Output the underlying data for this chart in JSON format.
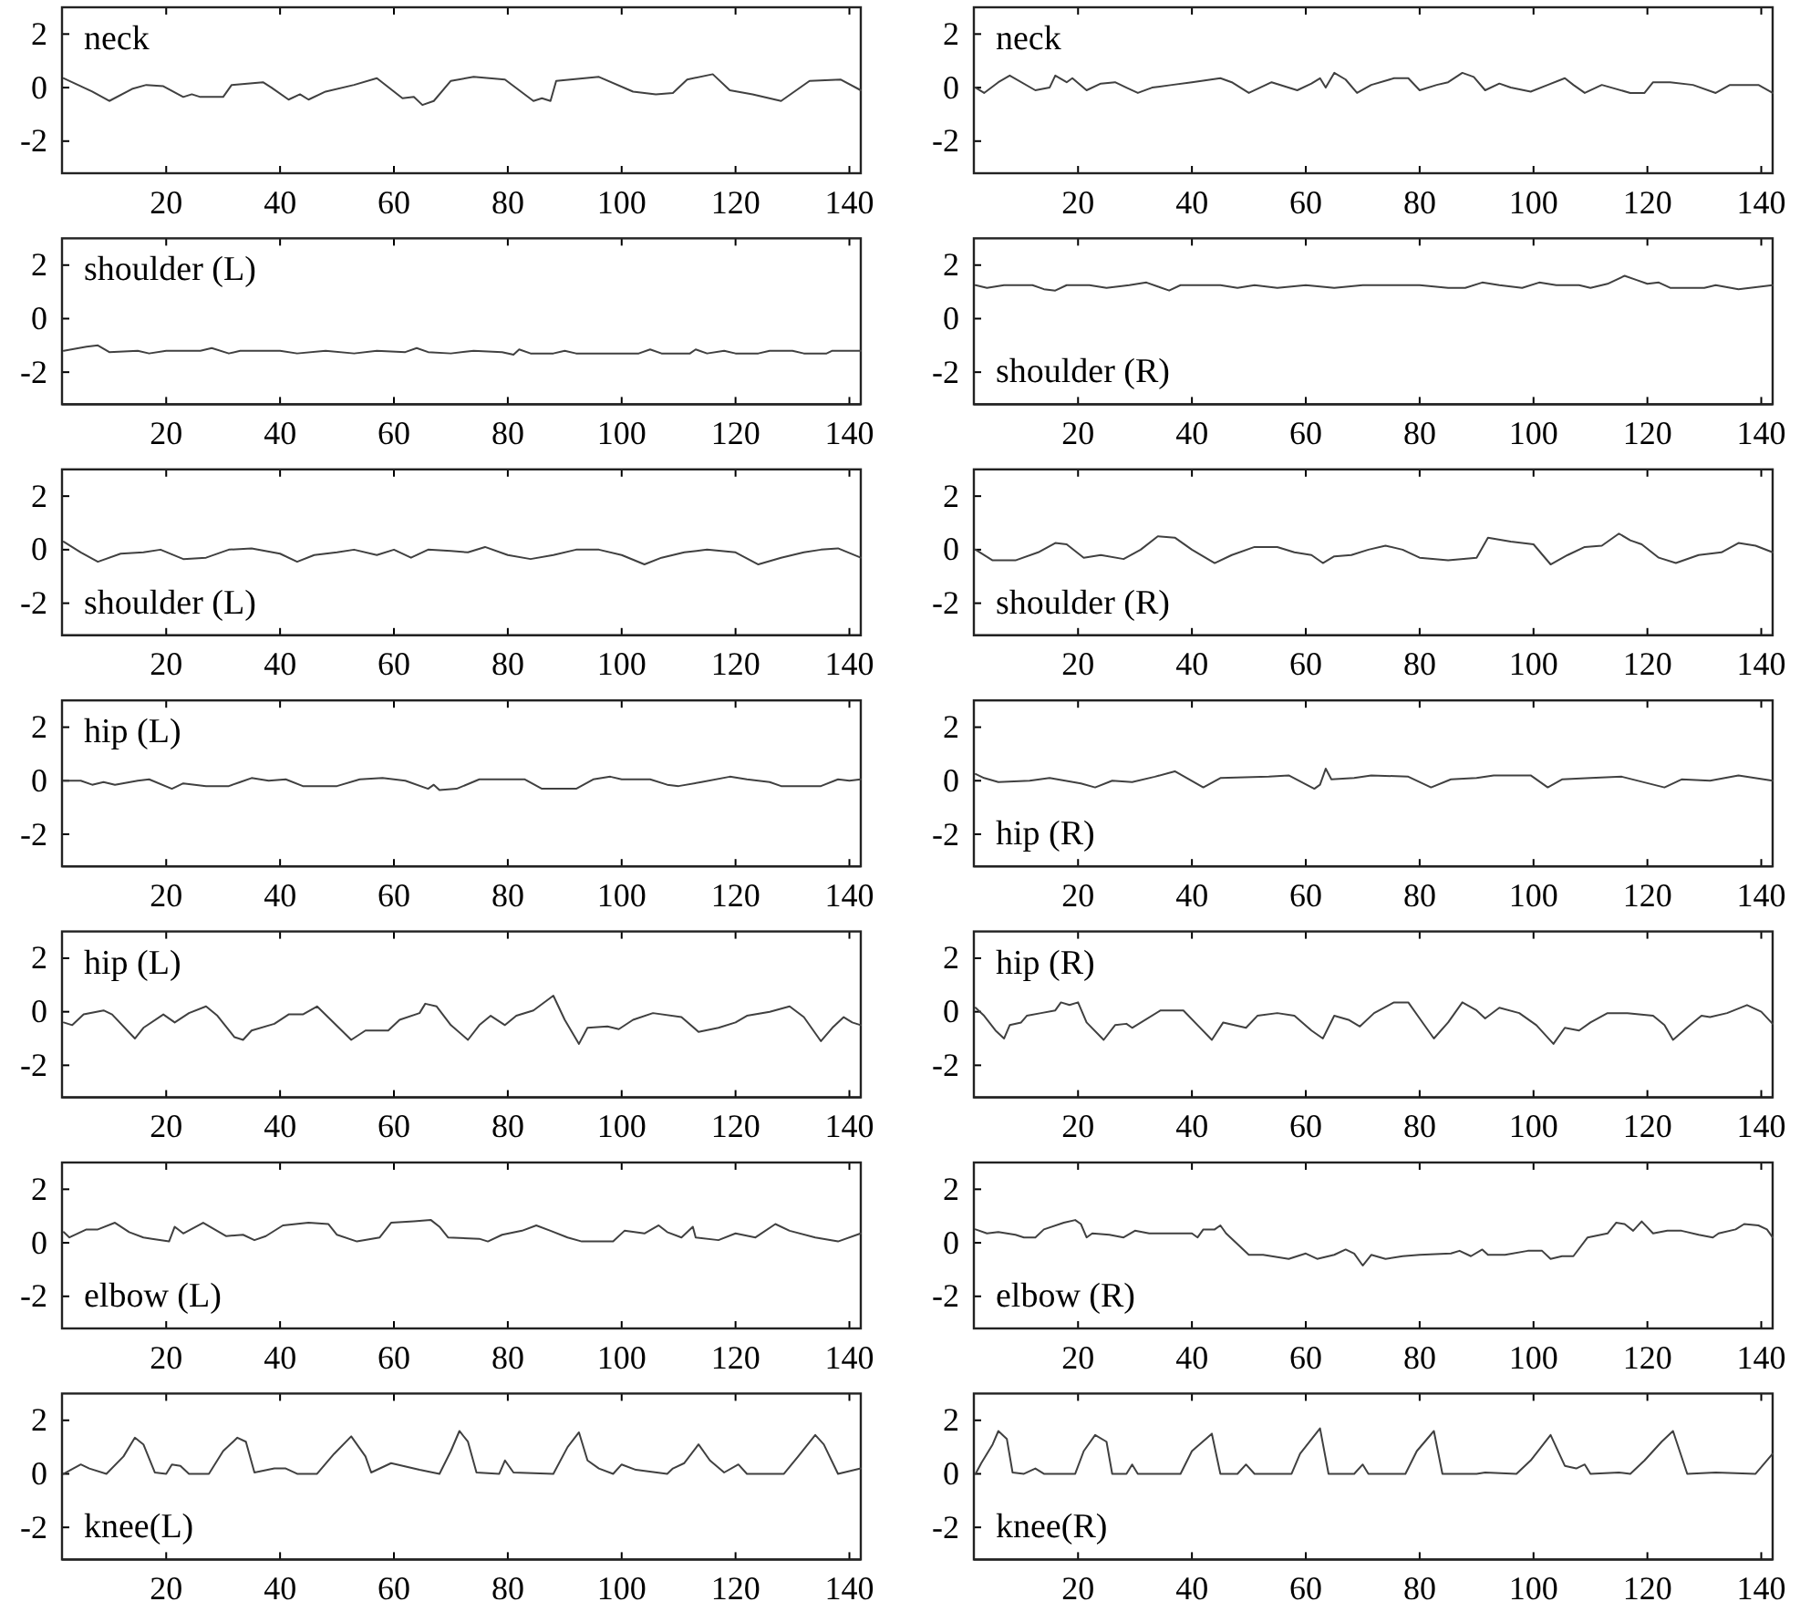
{
  "chart_data": [
    {
      "type": "line",
      "xlim": [
        1.7,
        142
      ],
      "xticks": [
        20,
        40,
        60,
        80,
        100,
        120,
        140
      ],
      "ylim": [
        -3.2,
        3
      ],
      "yticks": [
        -2,
        0,
        2
      ],
      "legend": "top left",
      "series": [
        {
          "name": "neck",
          "color": "#404040",
          "x": [
            2,
            7,
            10,
            14,
            16.5,
            19.5,
            23,
            24.5,
            26,
            30,
            31.5,
            37,
            38.5,
            41.5,
            43.5,
            45,
            48,
            53,
            57,
            61.5,
            63.5,
            65,
            67,
            70,
            74,
            79.5,
            84.5,
            86,
            87.5,
            88.5,
            96,
            102,
            106,
            109,
            111.5,
            116,
            119,
            123,
            128,
            133,
            138.5,
            142
          ],
          "values": [
            0.35,
            -0.15,
            -0.5,
            -0.05,
            0.1,
            0.05,
            -0.35,
            -0.25,
            -0.35,
            -0.35,
            0.1,
            0.2,
            0,
            -0.45,
            -0.25,
            -0.45,
            -0.15,
            0.1,
            0.35,
            -0.4,
            -0.35,
            -0.65,
            -0.5,
            0.25,
            0.4,
            0.3,
            -0.5,
            -0.4,
            -0.5,
            0.25,
            0.4,
            -0.15,
            -0.25,
            -0.2,
            0.3,
            0.5,
            -0.1,
            -0.25,
            -0.5,
            0.25,
            0.3,
            -0.1
          ]
        }
      ]
    },
    {
      "type": "line",
      "xlim": [
        1.7,
        142
      ],
      "xticks": [
        20,
        40,
        60,
        80,
        100,
        120,
        140
      ],
      "ylim": [
        -3.2,
        3
      ],
      "yticks": [
        -2,
        0,
        2
      ],
      "legend": "top left",
      "series": [
        {
          "name": "neck",
          "color": "#404040",
          "x": [
            2,
            3.5,
            6,
            8,
            12.5,
            15,
            16,
            18,
            19,
            21.5,
            24,
            26.5,
            28.5,
            30.5,
            33,
            36.5,
            40,
            45,
            47,
            50,
            54,
            58.5,
            61,
            62.5,
            63.5,
            65,
            67,
            69,
            71.5,
            75.5,
            78,
            80,
            83,
            85,
            87.5,
            89.5,
            91.5,
            94,
            96,
            99.5,
            102.5,
            105.5,
            107,
            109,
            112,
            117,
            119.5,
            121,
            124,
            128,
            132,
            134.5,
            139.5,
            142
          ],
          "values": [
            0,
            -0.2,
            0.2,
            0.45,
            -0.1,
            0,
            0.45,
            0.2,
            0.35,
            -0.1,
            0.15,
            0.2,
            0,
            -0.2,
            0,
            0.1,
            0.2,
            0.35,
            0.2,
            -0.2,
            0.2,
            -0.1,
            0.15,
            0.35,
            0,
            0.55,
            0.3,
            -0.2,
            0.1,
            0.35,
            0.35,
            -0.1,
            0.1,
            0.2,
            0.55,
            0.4,
            -0.1,
            0.15,
            0,
            -0.15,
            0.1,
            0.35,
            0.1,
            -0.2,
            0.1,
            -0.2,
            -0.2,
            0.2,
            0.2,
            0.1,
            -0.2,
            0.1,
            0.1,
            -0.2
          ]
        }
      ]
    },
    {
      "type": "line",
      "xlim": [
        1.7,
        142
      ],
      "xticks": [
        20,
        40,
        60,
        80,
        100,
        120,
        140
      ],
      "ylim": [
        -3.2,
        3
      ],
      "yticks": [
        -2,
        0,
        2
      ],
      "legend": "top left",
      "series": [
        {
          "name": "shoulder (L)",
          "color": "#404040",
          "x": [
            2,
            6,
            8,
            10,
            15,
            17,
            20,
            26,
            28,
            31,
            33,
            40,
            43,
            48,
            53,
            57,
            62,
            64,
            66,
            70,
            74,
            79,
            81,
            82,
            84,
            88,
            90,
            92,
            96,
            103,
            105,
            107,
            112,
            113,
            115,
            118,
            120,
            124,
            126,
            130,
            132,
            136,
            137,
            142
          ],
          "values": [
            -1.2,
            -1.05,
            -1,
            -1.25,
            -1.2,
            -1.3,
            -1.2,
            -1.2,
            -1.1,
            -1.3,
            -1.2,
            -1.2,
            -1.3,
            -1.2,
            -1.3,
            -1.2,
            -1.25,
            -1.1,
            -1.25,
            -1.3,
            -1.2,
            -1.25,
            -1.35,
            -1.15,
            -1.3,
            -1.3,
            -1.2,
            -1.3,
            -1.3,
            -1.3,
            -1.15,
            -1.3,
            -1.3,
            -1.15,
            -1.3,
            -1.2,
            -1.3,
            -1.3,
            -1.2,
            -1.2,
            -1.3,
            -1.3,
            -1.2,
            -1.2
          ]
        }
      ]
    },
    {
      "type": "line",
      "xlim": [
        1.7,
        142
      ],
      "xticks": [
        20,
        40,
        60,
        80,
        100,
        120,
        140
      ],
      "ylim": [
        -3.2,
        3
      ],
      "yticks": [
        -2,
        0,
        2
      ],
      "legend": "bottom left",
      "series": [
        {
          "name": "shoulder (R)",
          "color": "#404040",
          "x": [
            2,
            4,
            7,
            12,
            14,
            16,
            18,
            22,
            25,
            29,
            32,
            34,
            36,
            38,
            45,
            48,
            51,
            55,
            60,
            65,
            70,
            80,
            85,
            88,
            91,
            94,
            98,
            101,
            104,
            108,
            110,
            113,
            116,
            118,
            120,
            122,
            124,
            130,
            132,
            136,
            138,
            142
          ],
          "values": [
            1.25,
            1.15,
            1.25,
            1.25,
            1.1,
            1.05,
            1.25,
            1.25,
            1.15,
            1.25,
            1.35,
            1.2,
            1.05,
            1.25,
            1.25,
            1.15,
            1.25,
            1.15,
            1.25,
            1.15,
            1.25,
            1.25,
            1.15,
            1.15,
            1.35,
            1.25,
            1.15,
            1.35,
            1.25,
            1.25,
            1.15,
            1.3,
            1.6,
            1.45,
            1.3,
            1.35,
            1.15,
            1.15,
            1.25,
            1.1,
            1.15,
            1.25
          ]
        }
      ]
    },
    {
      "type": "line",
      "xlim": [
        1.7,
        142
      ],
      "xticks": [
        20,
        40,
        60,
        80,
        100,
        120,
        140
      ],
      "ylim": [
        -3.2,
        3
      ],
      "yticks": [
        -2,
        0,
        2
      ],
      "legend": "bottom left",
      "series": [
        {
          "name": "shoulder (L)",
          "color": "#404040",
          "x": [
            2,
            5,
            8,
            12,
            16,
            19,
            23,
            27,
            31,
            35,
            40,
            43,
            46,
            50,
            53,
            57,
            60,
            63,
            66,
            70,
            73,
            76,
            80,
            84,
            88,
            92,
            96,
            100,
            104,
            107,
            111,
            115,
            120,
            124,
            128,
            132,
            135,
            138,
            142
          ],
          "values": [
            0.3,
            -0.1,
            -0.45,
            -0.15,
            -0.1,
            0,
            -0.35,
            -0.3,
            0,
            0.05,
            -0.15,
            -0.45,
            -0.2,
            -0.1,
            0,
            -0.2,
            0,
            -0.3,
            0,
            -0.05,
            -0.1,
            0.1,
            -0.2,
            -0.35,
            -0.2,
            0,
            0,
            -0.2,
            -0.55,
            -0.3,
            -0.1,
            0,
            -0.1,
            -0.55,
            -0.3,
            -0.1,
            0,
            0.05,
            -0.3
          ]
        }
      ]
    },
    {
      "type": "line",
      "xlim": [
        1.7,
        142
      ],
      "xticks": [
        20,
        40,
        60,
        80,
        100,
        120,
        140
      ],
      "ylim": [
        -3.2,
        3
      ],
      "yticks": [
        -2,
        0,
        2
      ],
      "legend": "bottom left",
      "series": [
        {
          "name": "shoulder (R)",
          "color": "#404040",
          "x": [
            2,
            5,
            9,
            13,
            16,
            18,
            21,
            24,
            28,
            31,
            34,
            37,
            40,
            44,
            47,
            51,
            55,
            58,
            61,
            63,
            65,
            68,
            71,
            74,
            77,
            80,
            85,
            90,
            92,
            96,
            100,
            103,
            106,
            109,
            112,
            115,
            117,
            119,
            122,
            125,
            129,
            133,
            136,
            139,
            142
          ],
          "values": [
            0,
            -0.4,
            -0.4,
            -0.1,
            0.25,
            0.2,
            -0.3,
            -0.2,
            -0.35,
            0,
            0.5,
            0.45,
            0,
            -0.5,
            -0.2,
            0.1,
            0.1,
            -0.1,
            -0.2,
            -0.5,
            -0.25,
            -0.2,
            0,
            0.15,
            0,
            -0.3,
            -0.4,
            -0.3,
            0.45,
            0.3,
            0.2,
            -0.55,
            -0.2,
            0.1,
            0.15,
            0.6,
            0.35,
            0.2,
            -0.3,
            -0.5,
            -0.2,
            -0.1,
            0.25,
            0.15,
            -0.1
          ]
        }
      ]
    },
    {
      "type": "line",
      "xlim": [
        1.7,
        142
      ],
      "xticks": [
        20,
        40,
        60,
        80,
        100,
        120,
        140
      ],
      "ylim": [
        -3.2,
        3
      ],
      "yticks": [
        -2,
        0,
        2
      ],
      "legend": "top left",
      "series": [
        {
          "name": "hip (L)",
          "color": "#404040",
          "x": [
            2,
            5,
            7,
            9,
            11,
            15,
            17,
            21,
            23,
            25,
            27,
            31,
            33,
            35,
            38,
            41,
            44,
            50,
            54,
            58,
            62,
            66,
            67,
            68,
            71,
            75,
            83,
            86,
            92,
            95,
            98,
            100,
            105,
            108,
            110,
            114,
            119,
            122,
            126,
            128,
            135,
            138,
            140,
            142
          ],
          "values": [
            0,
            0,
            -0.15,
            -0.05,
            -0.15,
            0,
            0.05,
            -0.3,
            -0.1,
            -0.15,
            -0.2,
            -0.2,
            -0.05,
            0.1,
            0,
            0.05,
            -0.2,
            -0.2,
            0.05,
            0.1,
            0,
            -0.3,
            -0.15,
            -0.35,
            -0.3,
            0.05,
            0.05,
            -0.3,
            -0.3,
            0.05,
            0.15,
            0.05,
            0.05,
            -0.15,
            -0.2,
            -0.05,
            0.15,
            0.05,
            -0.05,
            -0.2,
            -0.2,
            0.05,
            0,
            0.05
          ]
        }
      ]
    },
    {
      "type": "line",
      "xlim": [
        1.7,
        142
      ],
      "xticks": [
        20,
        40,
        60,
        80,
        100,
        120,
        140
      ],
      "ylim": [
        -3.2,
        3
      ],
      "yticks": [
        -2,
        0,
        2
      ],
      "legend": "bottom left",
      "series": [
        {
          "name": "hip (R)",
          "color": "#404040",
          "x": [
            2,
            3.5,
            6,
            11.5,
            15,
            20.5,
            23,
            26,
            29.5,
            33.5,
            37,
            42,
            45,
            53.5,
            57,
            61.5,
            62.5,
            63.5,
            64.5,
            68.5,
            71.5,
            78,
            82,
            85.5,
            90,
            93,
            99.5,
            102.5,
            105,
            110,
            115.5,
            123,
            126,
            131,
            136,
            142
          ],
          "values": [
            0.25,
            0.1,
            -0.05,
            0,
            0.1,
            -0.1,
            -0.25,
            0,
            -0.05,
            0.15,
            0.35,
            -0.25,
            0.1,
            0.15,
            0.2,
            -0.3,
            -0.15,
            0.45,
            0.05,
            0.1,
            0.2,
            0.15,
            -0.25,
            0.05,
            0.1,
            0.2,
            0.2,
            -0.25,
            0.05,
            0.1,
            0.15,
            -0.25,
            0.05,
            0,
            0.2,
            0
          ]
        }
      ]
    },
    {
      "type": "line",
      "xlim": [
        1.7,
        142
      ],
      "xticks": [
        20,
        40,
        60,
        80,
        100,
        120,
        140
      ],
      "ylim": [
        -3.2,
        3
      ],
      "yticks": [
        -2,
        0,
        2
      ],
      "legend": "top left",
      "series": [
        {
          "name": "hip (L)",
          "color": "#404040",
          "x": [
            2,
            3.5,
            5.5,
            9,
            10.5,
            14.5,
            16,
            19.5,
            21.5,
            24,
            27,
            29,
            32,
            33.5,
            35,
            39,
            41.5,
            44,
            46.5,
            52.5,
            55,
            59,
            61,
            64.5,
            65.5,
            67.5,
            70,
            73,
            75,
            77,
            79.5,
            81.5,
            84.5,
            88,
            90,
            92.5,
            94,
            97.5,
            99.5,
            102,
            105.5,
            110.5,
            113.5,
            117,
            120,
            122,
            126,
            129.5,
            132,
            135,
            137,
            139,
            140.5,
            142
          ],
          "values": [
            -0.4,
            -0.5,
            -0.1,
            0.05,
            -0.1,
            -1,
            -0.6,
            -0.1,
            -0.4,
            -0.05,
            0.2,
            -0.15,
            -0.95,
            -1.05,
            -0.7,
            -0.45,
            -0.1,
            -0.1,
            0.2,
            -1.05,
            -0.7,
            -0.7,
            -0.3,
            -0.05,
            0.3,
            0.2,
            -0.5,
            -1.05,
            -0.5,
            -0.15,
            -0.5,
            -0.15,
            0.05,
            0.6,
            -0.3,
            -1.2,
            -0.6,
            -0.55,
            -0.65,
            -0.3,
            -0.05,
            -0.2,
            -0.75,
            -0.6,
            -0.4,
            -0.15,
            0,
            0.2,
            -0.2,
            -1.1,
            -0.6,
            -0.2,
            -0.4,
            -0.5
          ]
        }
      ]
    },
    {
      "type": "line",
      "xlim": [
        1.7,
        142
      ],
      "xticks": [
        20,
        40,
        60,
        80,
        100,
        120,
        140
      ],
      "ylim": [
        -3.2,
        3
      ],
      "yticks": [
        -2,
        0,
        2
      ],
      "legend": "top left",
      "series": [
        {
          "name": "hip (R)",
          "color": "#404040",
          "x": [
            2,
            3.5,
            5.5,
            7,
            8,
            10,
            11,
            13.5,
            16,
            17,
            18.5,
            20,
            21.5,
            24.5,
            26.5,
            28.5,
            29.5,
            34.5,
            38.5,
            41,
            43.5,
            45.5,
            49.5,
            51.5,
            55,
            58,
            61,
            63,
            65,
            67.5,
            69.5,
            72,
            75.5,
            78,
            80,
            82.5,
            85,
            87.5,
            90,
            91.5,
            94,
            97.5,
            100.5,
            103.5,
            105.5,
            108,
            110,
            113,
            116.5,
            121,
            123,
            124.5,
            127.5,
            129.5,
            131,
            134,
            137.5,
            140,
            142
          ],
          "values": [
            0.15,
            -0.15,
            -0.7,
            -1,
            -0.5,
            -0.4,
            -0.15,
            -0.05,
            0.05,
            0.35,
            0.25,
            0.35,
            -0.4,
            -1.05,
            -0.5,
            -0.45,
            -0.6,
            0.05,
            0.05,
            -0.5,
            -1.05,
            -0.4,
            -0.6,
            -0.15,
            -0.05,
            -0.15,
            -0.7,
            -1,
            -0.15,
            -0.3,
            -0.55,
            -0.05,
            0.35,
            0.35,
            -0.25,
            -1,
            -0.4,
            0.35,
            0.05,
            -0.25,
            0.15,
            -0.05,
            -0.5,
            -1.2,
            -0.6,
            -0.7,
            -0.4,
            -0.05,
            -0.05,
            -0.15,
            -0.5,
            -1.05,
            -0.5,
            -0.15,
            -0.2,
            -0.05,
            0.25,
            0,
            -0.45
          ]
        }
      ]
    },
    {
      "type": "line",
      "xlim": [
        1.7,
        142
      ],
      "xticks": [
        20,
        40,
        60,
        80,
        100,
        120,
        140
      ],
      "ylim": [
        -3.2,
        3
      ],
      "yticks": [
        -2,
        0,
        2
      ],
      "legend": "bottom left",
      "series": [
        {
          "name": "elbow (L)",
          "color": "#404040",
          "x": [
            2,
            3,
            6,
            8,
            11,
            13.5,
            16,
            17.5,
            20.5,
            21.5,
            23,
            26.5,
            30.5,
            33.5,
            35.5,
            37.5,
            40.5,
            45,
            48.5,
            50,
            53.5,
            57.5,
            59.5,
            63.5,
            66.5,
            68,
            69.5,
            75,
            76.5,
            79,
            82.5,
            85,
            87.5,
            90.5,
            93,
            98.5,
            100.5,
            104,
            106.5,
            108,
            110.5,
            112.5,
            113,
            117,
            120,
            123.5,
            127,
            129.5,
            134,
            138,
            142
          ],
          "values": [
            0.4,
            0.2,
            0.5,
            0.5,
            0.75,
            0.4,
            0.2,
            0.15,
            0.05,
            0.6,
            0.35,
            0.75,
            0.25,
            0.3,
            0.1,
            0.25,
            0.65,
            0.75,
            0.7,
            0.3,
            0.05,
            0.2,
            0.75,
            0.8,
            0.85,
            0.6,
            0.2,
            0.15,
            0.05,
            0.3,
            0.45,
            0.65,
            0.45,
            0.2,
            0.05,
            0.05,
            0.45,
            0.35,
            0.65,
            0.4,
            0.2,
            0.6,
            0.2,
            0.1,
            0.35,
            0.2,
            0.7,
            0.45,
            0.2,
            0.05,
            0.35
          ]
        }
      ]
    },
    {
      "type": "line",
      "xlim": [
        1.7,
        142
      ],
      "xticks": [
        20,
        40,
        60,
        80,
        100,
        120,
        140
      ],
      "ylim": [
        -3.2,
        3
      ],
      "yticks": [
        -2,
        0,
        2
      ],
      "legend": "bottom left",
      "series": [
        {
          "name": "elbow (R)",
          "color": "#404040",
          "x": [
            2,
            4,
            6,
            9,
            10.5,
            12.5,
            14,
            17.5,
            19.5,
            20.5,
            21.5,
            22.5,
            25.5,
            28,
            30,
            32.5,
            40,
            41,
            42,
            44,
            45,
            46,
            50,
            52.5,
            57,
            60,
            62,
            65,
            67,
            68.5,
            70,
            71.5,
            74,
            77,
            80,
            85.5,
            87,
            89,
            91,
            92,
            95,
            99,
            101.5,
            103,
            105,
            107,
            109.5,
            113,
            114.5,
            116,
            117.5,
            119,
            121,
            123.5,
            126,
            129,
            131.5,
            132.5,
            135.5,
            137,
            139.5,
            141,
            142
          ],
          "values": [
            0.5,
            0.35,
            0.4,
            0.3,
            0.2,
            0.2,
            0.5,
            0.75,
            0.85,
            0.7,
            0.2,
            0.35,
            0.3,
            0.2,
            0.45,
            0.35,
            0.35,
            0.2,
            0.5,
            0.5,
            0.65,
            0.35,
            -0.45,
            -0.45,
            -0.6,
            -0.4,
            -0.6,
            -0.45,
            -0.25,
            -0.4,
            -0.85,
            -0.45,
            -0.6,
            -0.5,
            -0.45,
            -0.4,
            -0.3,
            -0.5,
            -0.25,
            -0.45,
            -0.45,
            -0.3,
            -0.3,
            -0.6,
            -0.5,
            -0.5,
            0.2,
            0.35,
            0.75,
            0.7,
            0.45,
            0.8,
            0.35,
            0.45,
            0.45,
            0.3,
            0.2,
            0.35,
            0.5,
            0.7,
            0.65,
            0.5,
            0.2
          ]
        }
      ]
    },
    {
      "type": "line",
      "xlim": [
        1.7,
        142
      ],
      "xticks": [
        20,
        40,
        60,
        80,
        100,
        120,
        140
      ],
      "ylim": [
        -3.2,
        3
      ],
      "yticks": [
        -2,
        0,
        2
      ],
      "legend": "bottom left",
      "series": [
        {
          "name": "knee(L)",
          "color": "#404040",
          "x": [
            2,
            5,
            6.5,
            9.5,
            12.5,
            14.5,
            16,
            18,
            20,
            21,
            22.5,
            24,
            27.5,
            30,
            32.5,
            34,
            35.5,
            39,
            41,
            43,
            46.5,
            49.5,
            52.5,
            55,
            56,
            59.5,
            64.5,
            68,
            70,
            71.5,
            73,
            74.5,
            78.5,
            79.5,
            81,
            88,
            90.5,
            92.5,
            94,
            96,
            98.5,
            100,
            102.5,
            108,
            109,
            111,
            113.5,
            115.5,
            118,
            120.5,
            122,
            128.5,
            131,
            134,
            135.5,
            138,
            142
          ],
          "values": [
            0,
            0.35,
            0.2,
            0,
            0.65,
            1.35,
            1.1,
            0.05,
            0,
            0.35,
            0.3,
            0,
            0,
            0.85,
            1.35,
            1.2,
            0.05,
            0.2,
            0.2,
            0,
            0,
            0.75,
            1.4,
            0.65,
            0.05,
            0.4,
            0.15,
            0,
            0.85,
            1.6,
            1.2,
            0.05,
            0,
            0.5,
            0.05,
            0,
            1,
            1.55,
            0.5,
            0.2,
            0,
            0.35,
            0.15,
            0,
            0.2,
            0.4,
            1.1,
            0.5,
            0.05,
            0.35,
            0,
            0,
            0.65,
            1.45,
            1.1,
            0,
            0.2
          ]
        }
      ]
    },
    {
      "type": "line",
      "xlim": [
        1.7,
        142
      ],
      "xticks": [
        20,
        40,
        60,
        80,
        100,
        120,
        140
      ],
      "ylim": [
        -3.2,
        3
      ],
      "yticks": [
        -2,
        0,
        2
      ],
      "legend": "bottom left",
      "series": [
        {
          "name": "knee(R)",
          "color": "#404040",
          "x": [
            2,
            3,
            5,
            6,
            7.5,
            8.5,
            10.5,
            12.5,
            14,
            19.5,
            21,
            23,
            25,
            26,
            28.5,
            29.5,
            30.5,
            38,
            40,
            43.5,
            45,
            48,
            49.5,
            51,
            57.5,
            59,
            62.5,
            64,
            68.5,
            70,
            71,
            77.5,
            79.5,
            82.5,
            84,
            90,
            91.5,
            97,
            99.5,
            103,
            105.5,
            107.5,
            109,
            110,
            115,
            117,
            119.5,
            122.5,
            124.5,
            127,
            132,
            139,
            142
          ],
          "values": [
            0,
            0.4,
            1.1,
            1.6,
            1.3,
            0.05,
            0,
            0.2,
            0,
            0,
            0.85,
            1.45,
            1.2,
            0,
            0,
            0.35,
            0,
            0,
            0.85,
            1.5,
            0,
            0,
            0.35,
            0,
            0,
            0.75,
            1.7,
            0,
            0,
            0.35,
            0,
            0,
            0.85,
            1.6,
            0,
            0,
            0.05,
            0,
            0.5,
            1.45,
            0.3,
            0.2,
            0.35,
            0,
            0.05,
            0,
            0.5,
            1.2,
            1.6,
            0,
            0.05,
            0,
            0.75
          ]
        }
      ]
    }
  ]
}
